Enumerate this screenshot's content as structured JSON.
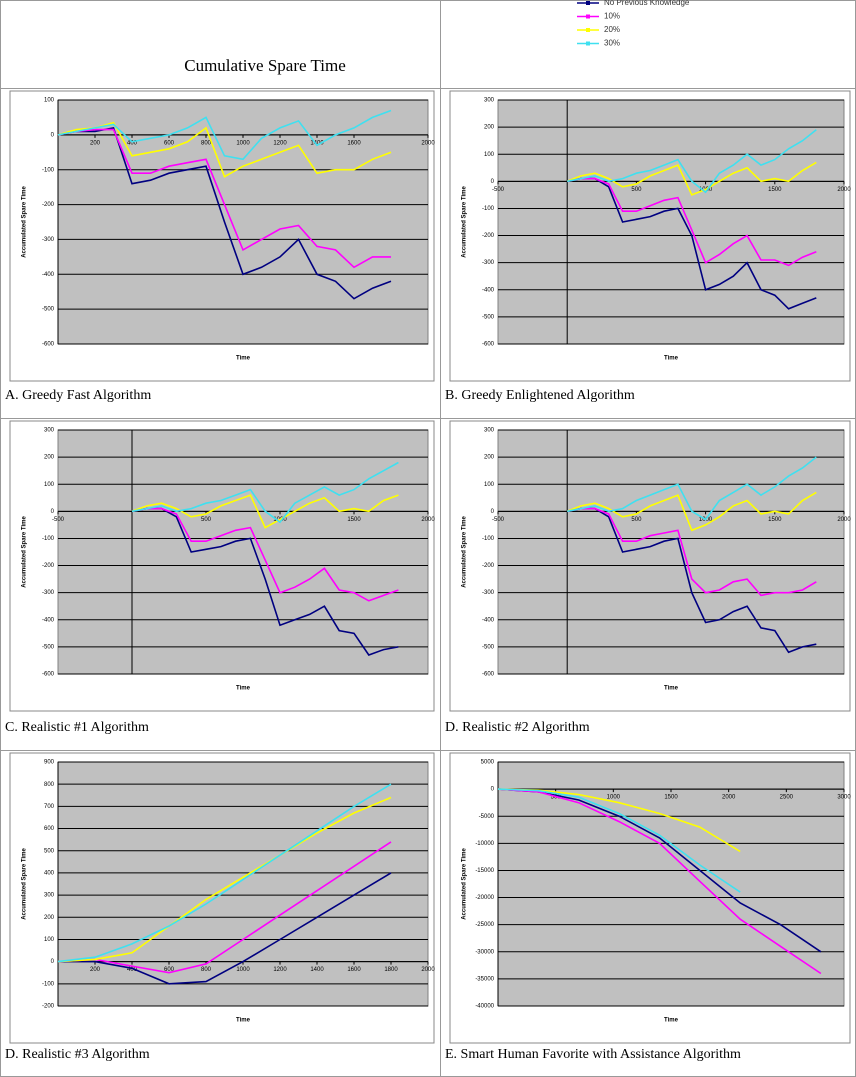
{
  "title": "Cumulative Spare Time",
  "legend": [
    {
      "name": "No Previous Knowledge",
      "color": "#000080"
    },
    {
      "name": "10%",
      "color": "#ff00ff"
    },
    {
      "name": "20%",
      "color": "#ffff00"
    },
    {
      "name": "30%",
      "color": "#3fe0f0"
    }
  ],
  "chart_data": [
    {
      "type": "line",
      "caption": "A. Greedy Fast Algorithm",
      "xlabel": "Time",
      "ylabel": "Accumulated Spare Time",
      "x": [
        0,
        100,
        200,
        300,
        400,
        500,
        600,
        700,
        800,
        900,
        1000,
        1100,
        1200,
        1300,
        1400,
        1500,
        1600,
        1700,
        1800
      ],
      "xlim": [
        0,
        2000
      ],
      "xticks": [
        200,
        400,
        600,
        800,
        1000,
        1200,
        1400,
        1600,
        2000
      ],
      "ylim": [
        -600,
        100
      ],
      "yticks": [
        -600,
        -500,
        -400,
        -300,
        -200,
        -100,
        0,
        100
      ],
      "grid": true,
      "series": [
        {
          "values": [
            0,
            10,
            10,
            20,
            -140,
            -130,
            -110,
            -100,
            -90,
            -250,
            -400,
            -380,
            -350,
            -300,
            -400,
            -420,
            -470,
            -440,
            -420
          ]
        },
        {
          "values": [
            0,
            10,
            15,
            15,
            -110,
            -110,
            -90,
            -80,
            -70,
            -200,
            -330,
            -300,
            -270,
            -260,
            -320,
            -330,
            -380,
            -350,
            -350
          ]
        },
        {
          "values": [
            0,
            15,
            20,
            35,
            -60,
            -50,
            -40,
            -20,
            20,
            -120,
            -90,
            -70,
            -50,
            -30,
            -110,
            -100,
            -100,
            -70,
            -50
          ]
        },
        {
          "values": [
            0,
            10,
            20,
            30,
            -20,
            -10,
            0,
            20,
            50,
            -60,
            -70,
            -10,
            20,
            40,
            -30,
            0,
            20,
            50,
            70
          ]
        }
      ]
    },
    {
      "type": "line",
      "caption": "B. Greedy Enlightened Algorithm",
      "xlabel": "Time",
      "ylabel": "Accumulated Spare Time",
      "x": [
        0,
        100,
        200,
        300,
        400,
        500,
        600,
        700,
        800,
        900,
        1000,
        1100,
        1200,
        1300,
        1400,
        1500,
        1600,
        1700,
        1800
      ],
      "xlim": [
        -500,
        2000
      ],
      "xticks": [
        -500,
        500,
        1000,
        1500,
        2000
      ],
      "ylim": [
        -600,
        300
      ],
      "yticks": [
        -600,
        -500,
        -400,
        -300,
        -200,
        -100,
        0,
        100,
        200,
        300
      ],
      "grid": true,
      "series": [
        {
          "values": [
            0,
            10,
            10,
            -20,
            -150,
            -140,
            -130,
            -110,
            -100,
            -200,
            -400,
            -380,
            -350,
            -300,
            -400,
            -420,
            -470,
            -450,
            -430
          ]
        },
        {
          "values": [
            0,
            10,
            10,
            -10,
            -110,
            -110,
            -90,
            -70,
            -60,
            -180,
            -300,
            -270,
            -230,
            -200,
            -290,
            -290,
            -310,
            -280,
            -260
          ]
        },
        {
          "values": [
            0,
            20,
            30,
            10,
            -20,
            -10,
            20,
            40,
            60,
            -50,
            -30,
            0,
            30,
            50,
            0,
            10,
            0,
            40,
            70
          ]
        },
        {
          "values": [
            0,
            10,
            20,
            0,
            10,
            30,
            40,
            60,
            80,
            0,
            -40,
            30,
            60,
            100,
            60,
            80,
            120,
            150,
            190
          ]
        }
      ]
    },
    {
      "type": "line",
      "caption": "C. Realistic #1 Algorithm",
      "xlabel": "Time",
      "ylabel": "Accumulated Spare Time",
      "x": [
        0,
        100,
        200,
        300,
        400,
        500,
        600,
        700,
        800,
        900,
        1000,
        1100,
        1200,
        1300,
        1400,
        1500,
        1600,
        1700,
        1800
      ],
      "xlim": [
        -500,
        2000
      ],
      "xticks": [
        -500,
        500,
        1000,
        1500,
        2000
      ],
      "ylim": [
        -600,
        300
      ],
      "yticks": [
        -600,
        -500,
        -400,
        -300,
        -200,
        -100,
        0,
        100,
        200,
        300
      ],
      "grid": true,
      "series": [
        {
          "values": [
            0,
            10,
            10,
            -20,
            -150,
            -140,
            -130,
            -110,
            -100,
            -250,
            -420,
            -400,
            -380,
            -350,
            -440,
            -450,
            -530,
            -510,
            -500
          ]
        },
        {
          "values": [
            0,
            10,
            10,
            -10,
            -110,
            -110,
            -90,
            -70,
            -60,
            -180,
            -300,
            -280,
            -250,
            -210,
            -290,
            -300,
            -330,
            -310,
            -290
          ]
        },
        {
          "values": [
            0,
            20,
            30,
            10,
            -20,
            -10,
            20,
            40,
            60,
            -60,
            -30,
            0,
            30,
            50,
            0,
            10,
            0,
            40,
            60
          ]
        },
        {
          "values": [
            0,
            10,
            20,
            0,
            10,
            30,
            40,
            60,
            80,
            0,
            -40,
            30,
            60,
            90,
            60,
            80,
            120,
            150,
            180
          ]
        }
      ]
    },
    {
      "type": "line",
      "caption": "D. Realistic #2 Algorithm",
      "xlabel": "Time",
      "ylabel": "Accumulated Spare Time",
      "x": [
        0,
        100,
        200,
        300,
        400,
        500,
        600,
        700,
        800,
        900,
        1000,
        1100,
        1200,
        1300,
        1400,
        1500,
        1600,
        1700,
        1800
      ],
      "xlim": [
        -500,
        2000
      ],
      "xticks": [
        -500,
        500,
        1000,
        1500,
        2000
      ],
      "ylim": [
        -600,
        300
      ],
      "yticks": [
        -600,
        -500,
        -400,
        -300,
        -200,
        -100,
        0,
        100,
        200,
        300
      ],
      "grid": true,
      "series": [
        {
          "values": [
            0,
            10,
            10,
            -20,
            -150,
            -140,
            -130,
            -110,
            -100,
            -300,
            -410,
            -400,
            -370,
            -350,
            -430,
            -440,
            -520,
            -500,
            -490
          ]
        },
        {
          "values": [
            0,
            10,
            10,
            -10,
            -110,
            -110,
            -90,
            -80,
            -70,
            -250,
            -300,
            -290,
            -260,
            -250,
            -310,
            -300,
            -300,
            -290,
            -260
          ]
        },
        {
          "values": [
            0,
            20,
            30,
            10,
            -20,
            -10,
            20,
            40,
            60,
            -70,
            -50,
            -20,
            20,
            40,
            -10,
            0,
            -10,
            40,
            70
          ]
        },
        {
          "values": [
            0,
            10,
            20,
            0,
            10,
            40,
            60,
            80,
            100,
            0,
            -30,
            40,
            70,
            100,
            60,
            90,
            130,
            160,
            200
          ]
        }
      ]
    },
    {
      "type": "line",
      "caption": "D. Realistic #3 Algorithm",
      "xlabel": "Time",
      "ylabel": "Accumulated Spare Time",
      "x": [
        0,
        200,
        400,
        600,
        800,
        1000,
        1200,
        1400,
        1600,
        1800
      ],
      "xlim": [
        0,
        2000
      ],
      "xticks": [
        200,
        400,
        600,
        800,
        1000,
        1200,
        1400,
        1600,
        1800,
        2000
      ],
      "ylim": [
        -200,
        900
      ],
      "yticks": [
        -200,
        -100,
        0,
        100,
        200,
        300,
        400,
        500,
        600,
        700,
        800,
        900
      ],
      "grid": true,
      "series": [
        {
          "values": [
            0,
            0,
            -30,
            -100,
            -90,
            0,
            100,
            200,
            300,
            400
          ]
        },
        {
          "values": [
            0,
            10,
            -20,
            -50,
            -10,
            100,
            210,
            320,
            430,
            540
          ]
        },
        {
          "values": [
            0,
            10,
            40,
            160,
            280,
            380,
            480,
            580,
            670,
            740
          ]
        },
        {
          "values": [
            0,
            20,
            80,
            160,
            260,
            370,
            480,
            590,
            700,
            800
          ]
        }
      ]
    },
    {
      "type": "line",
      "caption": "E. Smart Human Favorite with Assistance Algorithm",
      "xlabel": "Time",
      "ylabel": "Accumulated Spare Time",
      "x": [
        0,
        350,
        700,
        1050,
        1400,
        1750,
        2100,
        2450,
        2800
      ],
      "xlim": [
        0,
        3000
      ],
      "xticks": [
        500,
        1000,
        1500,
        2000,
        2500,
        3000
      ],
      "ylim": [
        -40000,
        5000
      ],
      "yticks": [
        -40000,
        -35000,
        -30000,
        -25000,
        -20000,
        -15000,
        -10000,
        -5000,
        0,
        5000
      ],
      "grid": true,
      "series": [
        {
          "values": [
            0,
            -500,
            -2000,
            -5000,
            -9000,
            -15000,
            -21000,
            -25000,
            -30000
          ]
        },
        {
          "values": [
            0,
            -500,
            -2500,
            -6000,
            -10000,
            -17000,
            -24000,
            -29000,
            -34000
          ]
        },
        {
          "values": [
            0,
            -200,
            -1000,
            -2500,
            -4500,
            -7000,
            -11500,
            null,
            null
          ]
        },
        {
          "values": [
            0,
            -300,
            -1500,
            -4500,
            -8500,
            -14000,
            -19000,
            null,
            null
          ]
        }
      ]
    }
  ]
}
